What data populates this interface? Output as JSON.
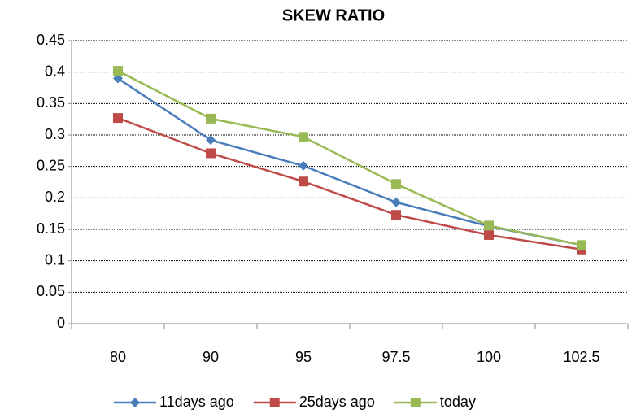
{
  "chart_data": {
    "type": "line",
    "title": "SKEW RATIO",
    "categories": [
      "80",
      "90",
      "95",
      "97.5",
      "100",
      "102.5"
    ],
    "series": [
      {
        "name": "11days ago",
        "color": "#4a7ebb",
        "marker": "diamond",
        "values": [
          0.39,
          0.292,
          0.251,
          0.193,
          0.155,
          0.125
        ]
      },
      {
        "name": "25days ago",
        "color": "#be4b48",
        "marker": "square",
        "values": [
          0.327,
          0.271,
          0.226,
          0.173,
          0.141,
          0.118
        ]
      },
      {
        "name": "today",
        "color": "#98b954",
        "marker": "square",
        "values": [
          0.402,
          0.326,
          0.297,
          0.222,
          0.156,
          0.125
        ]
      }
    ],
    "ylim": [
      0,
      0.45
    ],
    "yticks": [
      0,
      0.05,
      0.1,
      0.15,
      0.2,
      0.25,
      0.3,
      0.35,
      0.4,
      0.45
    ],
    "grid": true,
    "legend": "bottom"
  }
}
